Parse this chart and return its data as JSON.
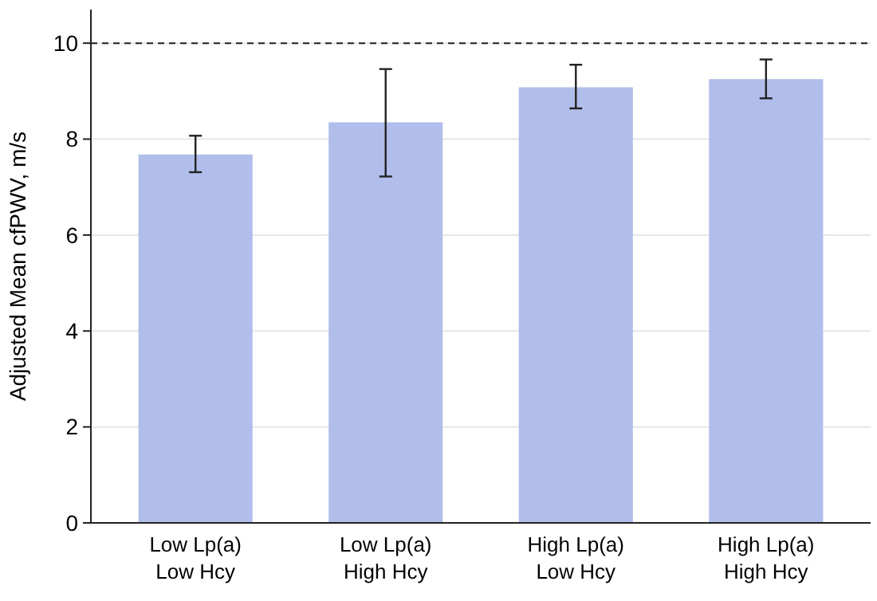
{
  "chart_data": {
    "type": "bar",
    "ylabel": "Adjusted Mean cfPWV, m/s",
    "categories": [
      "Low Lp(a)\nLow Hcy",
      "Low Lp(a)\nHigh Hcy",
      "High Lp(a)\nLow Hcy",
      "High Lp(a)\nHigh Hcy"
    ],
    "values": [
      7.68,
      8.35,
      9.08,
      9.25
    ],
    "errors": [
      [
        7.31,
        8.07
      ],
      [
        7.22,
        9.46
      ],
      [
        8.64,
        9.55
      ],
      [
        8.85,
        9.66
      ]
    ],
    "color": "#b1bdeb",
    "ylim": [
      0,
      10.7
    ],
    "yticks": [
      0,
      2,
      4,
      6,
      8,
      10
    ],
    "grid": "y",
    "ref_lines": [
      {
        "axis": "y",
        "value": 10,
        "color": "#222222",
        "line_style": "dashed"
      }
    ]
  }
}
